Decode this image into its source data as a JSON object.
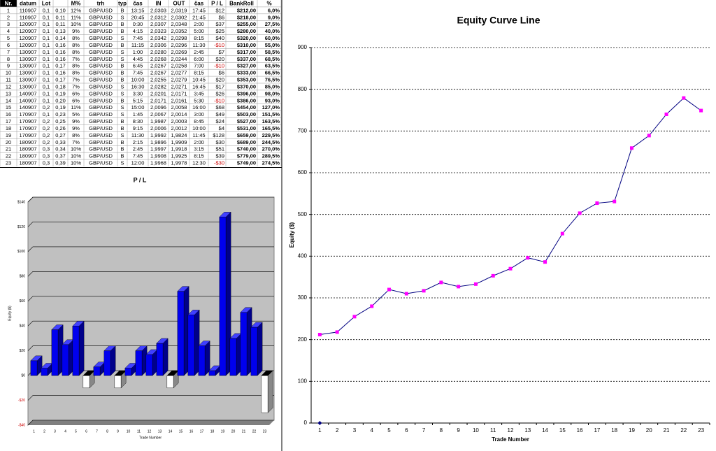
{
  "table": {
    "header": [
      "Nr.",
      "datum",
      "Lot",
      null,
      "M%",
      "trh",
      "typ",
      "čas",
      "IN",
      "OUT",
      "čas",
      "P / L",
      "BankRoll",
      "%"
    ],
    "rows": [
      [
        "1",
        "110907",
        "0,1",
        "0,10",
        "12%",
        "GBP/USD",
        "B",
        "13:15",
        "2,0303",
        "2,0319",
        "17:45",
        "$12",
        "$212,00",
        "6,0%"
      ],
      [
        "2",
        "110907",
        "0,1",
        "0,11",
        "11%",
        "GBP/USD",
        "S",
        "20:45",
        "2,0312",
        "2,0302",
        "21:45",
        "$6",
        "$218,00",
        "9,0%"
      ],
      [
        "3",
        "120907",
        "0,1",
        "0,11",
        "10%",
        "GBP/USD",
        "B",
        "0:30",
        "2,0307",
        "2,0348",
        "2:00",
        "$37",
        "$255,00",
        "27,5%"
      ],
      [
        "4",
        "120907",
        "0,1",
        "0,13",
        "9%",
        "GBP/USD",
        "B",
        "4:15",
        "2,0323",
        "2,0352",
        "5:00",
        "$25",
        "$280,00",
        "40,0%"
      ],
      [
        "5",
        "120907",
        "0,1",
        "0,14",
        "8%",
        "GBP/USD",
        "S",
        "7:45",
        "2,0342",
        "2,0298",
        "8:15",
        "$40",
        "$320,00",
        "60,0%"
      ],
      [
        "6",
        "120907",
        "0,1",
        "0,16",
        "8%",
        "GBP/USD",
        "B",
        "11:15",
        "2,0306",
        "2,0296",
        "11:30",
        "-$10",
        "$310,00",
        "55,0%"
      ],
      [
        "7",
        "130907",
        "0,1",
        "0,16",
        "8%",
        "GBP/USD",
        "S",
        "1:00",
        "2,0280",
        "2,0269",
        "2:45",
        "$7",
        "$317,00",
        "58,5%"
      ],
      [
        "8",
        "130907",
        "0,1",
        "0,16",
        "7%",
        "GBP/USD",
        "S",
        "4:45",
        "2,0268",
        "2,0244",
        "6:00",
        "$20",
        "$337,00",
        "68,5%"
      ],
      [
        "9",
        "130907",
        "0,1",
        "0,17",
        "8%",
        "GBP/USD",
        "B",
        "6:45",
        "2,0267",
        "2,0258",
        "7:00",
        "-$10",
        "$327,00",
        "63,5%"
      ],
      [
        "10",
        "130907",
        "0,1",
        "0,16",
        "8%",
        "GBP/USD",
        "B",
        "7:45",
        "2,0267",
        "2,0277",
        "8:15",
        "$6",
        "$333,00",
        "66,5%"
      ],
      [
        "11",
        "130907",
        "0,1",
        "0,17",
        "7%",
        "GBP/USD",
        "B",
        "10:00",
        "2,0255",
        "2,0279",
        "10:45",
        "$20",
        "$353,00",
        "76,5%"
      ],
      [
        "12",
        "130907",
        "0,1",
        "0,18",
        "7%",
        "GBP/USD",
        "S",
        "16:30",
        "2,0282",
        "2,0271",
        "16:45",
        "$17",
        "$370,00",
        "85,0%"
      ],
      [
        "13",
        "140907",
        "0,1",
        "0,19",
        "6%",
        "GBP/USD",
        "S",
        "3:30",
        "2,0201",
        "2,0171",
        "3:45",
        "$26",
        "$396,00",
        "98,0%"
      ],
      [
        "14",
        "140907",
        "0,1",
        "0,20",
        "6%",
        "GBP/USD",
        "B",
        "5:15",
        "2,0171",
        "2,0161",
        "5:30",
        "-$10",
        "$386,00",
        "93,0%"
      ],
      [
        "15",
        "140907",
        "0,2",
        "0,19",
        "11%",
        "GBP/USD",
        "S",
        "15:00",
        "2,0096",
        "2,0058",
        "16:00",
        "$68",
        "$454,00",
        "127,0%"
      ],
      [
        "16",
        "170907",
        "0,1",
        "0,23",
        "5%",
        "GBP/USD",
        "S",
        "1:45",
        "2,0067",
        "2,0014",
        "3:00",
        "$49",
        "$503,00",
        "151,5%"
      ],
      [
        "17",
        "170907",
        "0,2",
        "0,25",
        "9%",
        "GBP/USD",
        "B",
        "8:30",
        "1,9987",
        "2,0003",
        "8:45",
        "$24",
        "$527,00",
        "163,5%"
      ],
      [
        "18",
        "170907",
        "0,2",
        "0,26",
        "9%",
        "GBP/USD",
        "B",
        "9:15",
        "2,0006",
        "2,0012",
        "10:00",
        "$4",
        "$531,00",
        "165,5%"
      ],
      [
        "19",
        "170907",
        "0,2",
        "0,27",
        "8%",
        "GBP/USD",
        "S",
        "11:30",
        "1,9992",
        "1,9824",
        "11:45",
        "$128",
        "$659,00",
        "229,5%"
      ],
      [
        "20",
        "180907",
        "0,2",
        "0,33",
        "7%",
        "GBP/USD",
        "B",
        "2:15",
        "1,9896",
        "1,9909",
        "2:00",
        "$30",
        "$689,00",
        "244,5%"
      ],
      [
        "21",
        "180907",
        "0,3",
        "0,34",
        "10%",
        "GBP/USD",
        "B",
        "2:45",
        "1,9997",
        "1,9918",
        "3:15",
        "$51",
        "$740,00",
        "270,0%"
      ],
      [
        "22",
        "180907",
        "0,3",
        "0,37",
        "10%",
        "GBP/USD",
        "B",
        "7:45",
        "1,9908",
        "1,9925",
        "8:15",
        "$39",
        "$779,00",
        "289,5%"
      ],
      [
        "23",
        "180907",
        "0,3",
        "0,39",
        "10%",
        "GBP/USD",
        "S",
        "12:00",
        "1,9968",
        "1,9978",
        "12:30",
        "-$30",
        "$749,00",
        "274,5%"
      ]
    ]
  },
  "chart_data": [
    {
      "type": "bar3d",
      "title": "P / L",
      "ylabel": "Equity ($)",
      "xlabel": "Trade Number",
      "categories": [
        "1",
        "2",
        "3",
        "4",
        "5",
        "6",
        "7",
        "8",
        "9",
        "10",
        "11",
        "12",
        "13",
        "14",
        "15",
        "16",
        "17",
        "18",
        "19",
        "20",
        "21",
        "22",
        "23"
      ],
      "values": [
        12,
        6,
        37,
        25,
        40,
        -10,
        7,
        20,
        -10,
        6,
        20,
        17,
        26,
        -10,
        68,
        49,
        24,
        4,
        128,
        30,
        51,
        39,
        -30
      ],
      "color": "#0000ee",
      "negative_color": "#ffffff",
      "tick_negative_color": "#cc0000",
      "ylim": [
        -40,
        140
      ],
      "yticks": [
        {
          "value": -40,
          "label": "-$40"
        },
        {
          "value": -20,
          "label": "-$20"
        },
        {
          "value": 0,
          "label": "$0"
        },
        {
          "value": 20,
          "label": "$20"
        },
        {
          "value": 40,
          "label": "$40"
        },
        {
          "value": 60,
          "label": "$60"
        },
        {
          "value": 80,
          "label": "$80"
        },
        {
          "value": 100,
          "label": "$100"
        },
        {
          "value": 120,
          "label": "$120"
        },
        {
          "value": 140,
          "label": "$140"
        }
      ],
      "grid": true
    },
    {
      "type": "line",
      "title": "Equity Curve Line",
      "ylabel": "Equity ($)",
      "xlabel": "Trade Number",
      "categories": [
        "1",
        "2",
        "3",
        "4",
        "5",
        "6",
        "7",
        "8",
        "9",
        "10",
        "11",
        "12",
        "13",
        "14",
        "15",
        "16",
        "17",
        "18",
        "19",
        "20",
        "21",
        "22",
        "23"
      ],
      "series": [
        {
          "color": "#000080",
          "marker_color": "#ff00ff",
          "values": [
            212,
            218,
            255,
            280,
            320,
            310,
            317,
            337,
            327,
            333,
            353,
            370,
            396,
            386,
            454,
            503,
            527,
            531,
            659,
            689,
            740,
            779,
            749
          ]
        },
        {
          "color": "#000080",
          "marker_color": "#000080",
          "values": [
            0,
            null,
            null,
            null,
            null,
            null,
            null,
            null,
            null,
            null,
            null,
            null,
            null,
            null,
            null,
            null,
            null,
            null,
            null,
            null,
            null,
            null,
            null
          ]
        }
      ],
      "ylim": [
        0,
        900
      ],
      "yticks": [
        0,
        100,
        200,
        300,
        400,
        500,
        600,
        700,
        800,
        900
      ],
      "grid": true
    }
  ]
}
